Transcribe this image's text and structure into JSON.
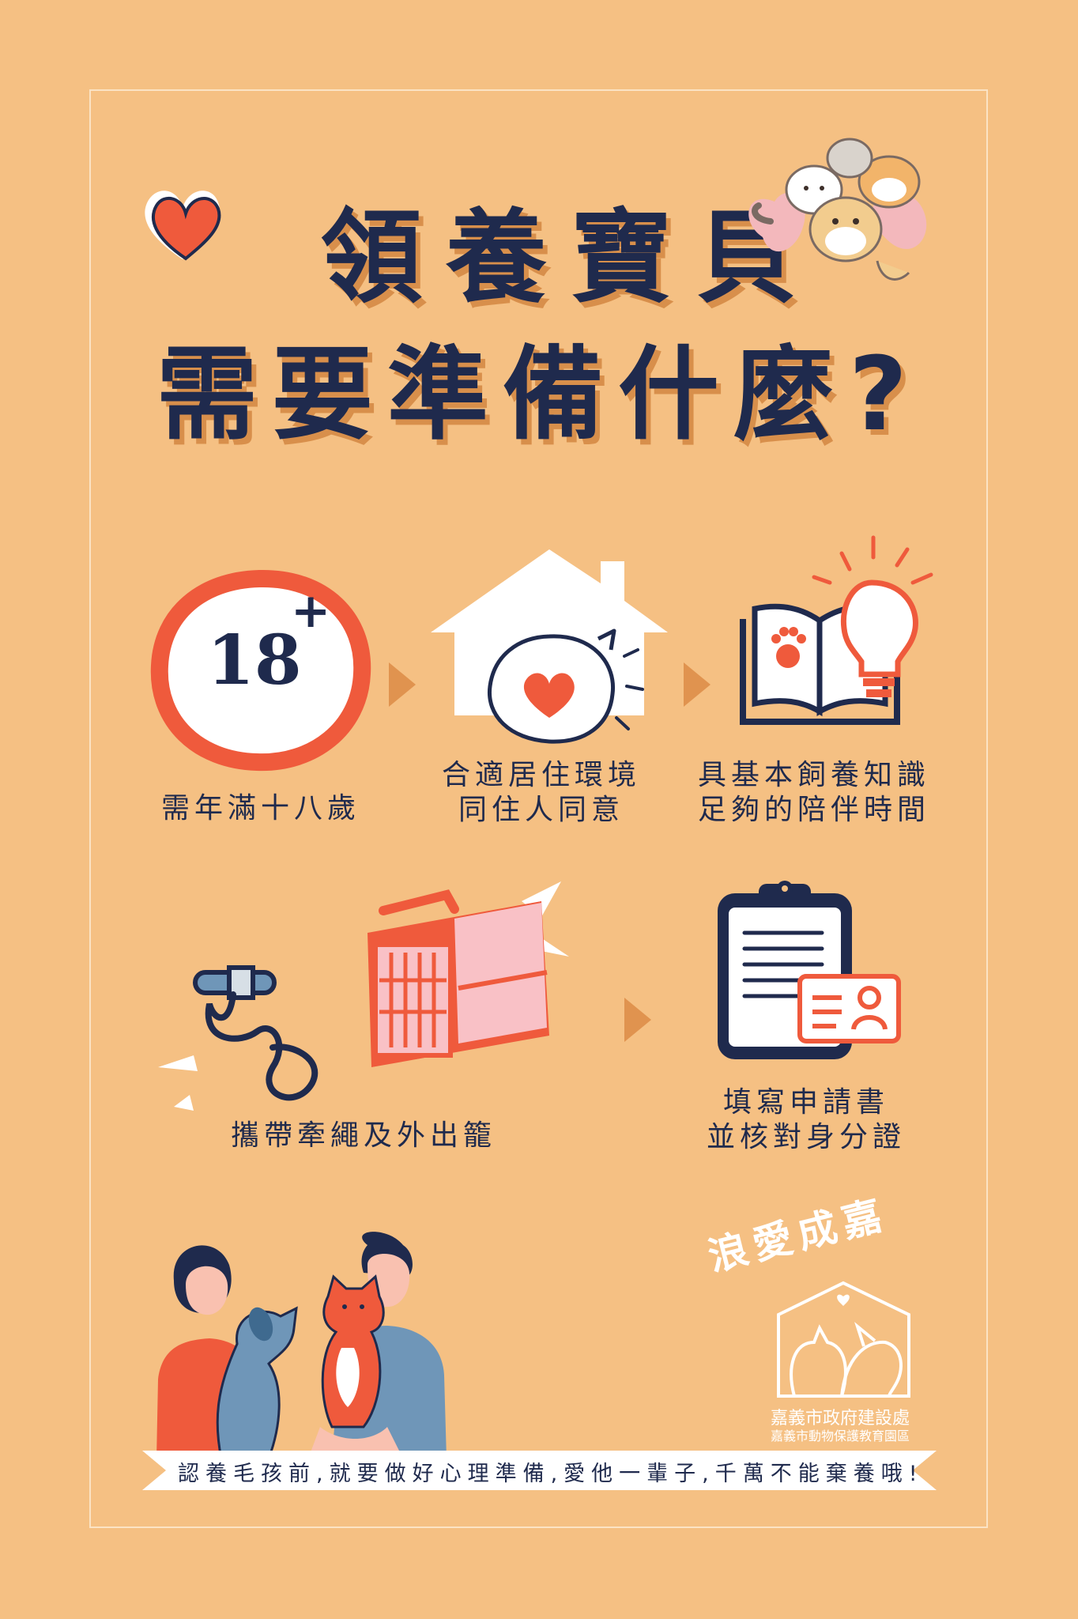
{
  "title": {
    "line1": "領養寶貝",
    "line2": "需要準備什麼?"
  },
  "steps": [
    {
      "icon": "age-18-plus-icon",
      "badge": "18",
      "badge_sup": "+",
      "text1": "需年滿十八歲"
    },
    {
      "icon": "house-heart-icon",
      "text1": "合適居住環境",
      "text2": "同住人同意"
    },
    {
      "icon": "book-lightbulb-icon",
      "text1": "具基本飼養知識",
      "text2": "足夠的陪伴時間"
    },
    {
      "icon": "leash-carrier-icon",
      "text1": "攜帶牽繩及外出籠"
    },
    {
      "icon": "clipboard-id-icon",
      "text1": "填寫申請書",
      "text2": "並核對身分證"
    }
  ],
  "banner": {
    "text": "認養毛孩前,就要做好心理準備,愛他一輩子,千萬不能棄養哦!"
  },
  "logo": {
    "title": "浪愛成嘉",
    "org": "嘉義市政府建設處",
    "sub": "嘉義市動物保護教育園區"
  },
  "colors": {
    "background": "#f5c083",
    "navy": "#1f2a4d",
    "coral": "#ef5a3c",
    "shadow": "#d88f4b"
  }
}
